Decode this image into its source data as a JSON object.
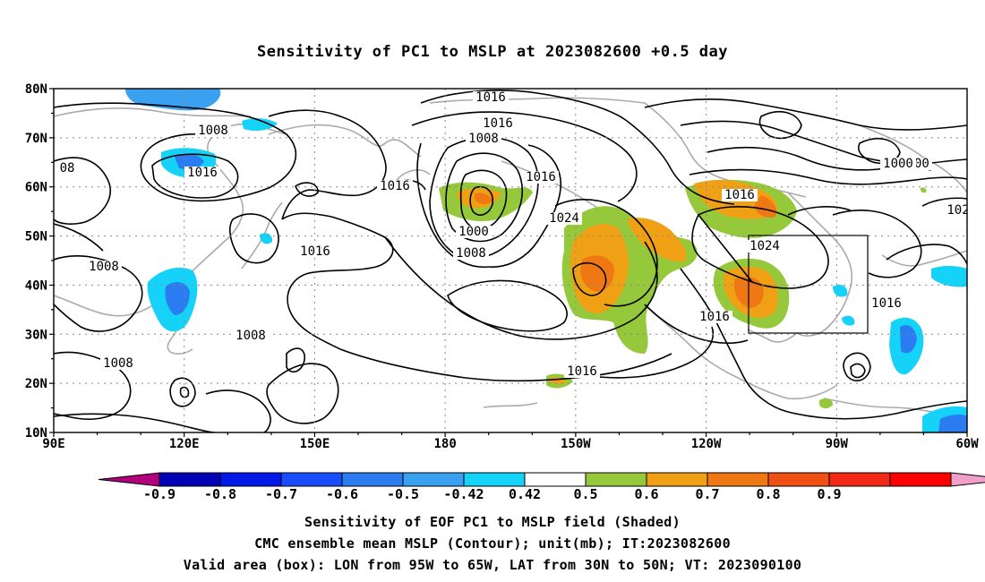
{
  "title": "Sensitivity of PC1 to MSLP at 2023082600 +0.5 day",
  "map": {
    "lat_labels": [
      "80N",
      "70N",
      "60N",
      "50N",
      "40N",
      "30N",
      "20N",
      "10N"
    ],
    "lon_labels": [
      "90E",
      "120E",
      "150E",
      "180",
      "150W",
      "120W",
      "90W",
      "60W"
    ],
    "contour_labels": [
      {
        "text": "1016"
      },
      {
        "text": "1016"
      },
      {
        "text": "1008"
      },
      {
        "text": "1016"
      },
      {
        "text": "1016"
      },
      {
        "text": "1000"
      },
      {
        "text": "1008"
      },
      {
        "text": "1024"
      },
      {
        "text": "1016"
      },
      {
        "text": "1008"
      },
      {
        "text": "1000"
      },
      {
        "text": "1024"
      },
      {
        "text": "1016"
      },
      {
        "text": "1016"
      },
      {
        "text": "1016"
      },
      {
        "text": "1008"
      },
      {
        "text": "1008"
      },
      {
        "text": "1016"
      },
      {
        "text": "1008"
      },
      {
        "text": "1000"
      },
      {
        "text": "1016"
      },
      {
        "text": "08"
      },
      {
        "text": "102"
      }
    ],
    "valid_box": {
      "lon_from": "95W",
      "lon_to": "65W",
      "lat_from": "30N",
      "lat_to": "50N"
    }
  },
  "colorbar": {
    "colors": [
      "#b0007c",
      "#0000b4",
      "#0018e6",
      "#1a4cff",
      "#2a7cf0",
      "#3aa0f0",
      "#14d2f8",
      "#ffffff",
      "#96c83c",
      "#f0a014",
      "#f07814",
      "#f05014",
      "#f02814",
      "#ff0000",
      "#f0a0c8"
    ],
    "labels": [
      "-0.9",
      "-0.8",
      "-0.7",
      "-0.6",
      "-0.5",
      "-0.42",
      "0.42",
      "0.5",
      "0.6",
      "0.7",
      "0.8",
      "0.9"
    ]
  },
  "captions": [
    "Sensitivity of EOF PC1 to MSLP field (Shaded)",
    "CMC ensemble mean MSLP (Contour); unit(mb); IT:2023082600",
    "Valid area (box): LON from 95W to 65W, LAT from 30N to 50N; VT: 2023090100"
  ]
}
